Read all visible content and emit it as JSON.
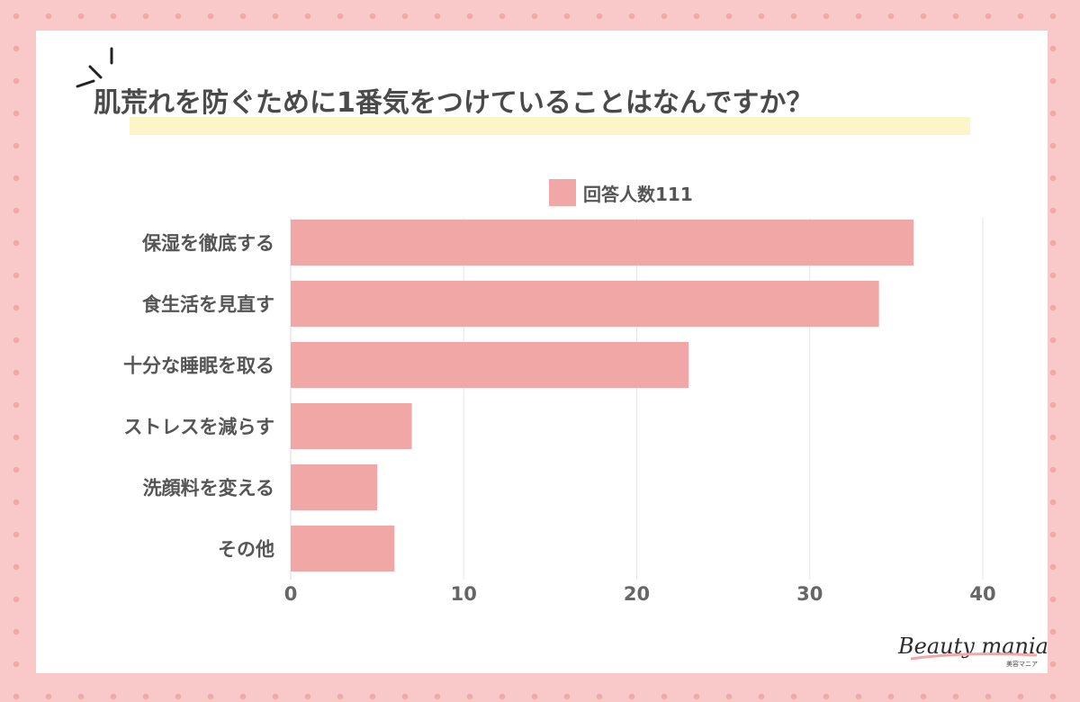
{
  "chart_data": {
    "type": "bar",
    "orientation": "horizontal",
    "title": "肌荒れを防ぐために1番気をつけていることはなんですか？",
    "categories": [
      "保湿を徹底する",
      "食生活を見直す",
      "十分な睡眠を取る",
      "ストレスを減らす",
      "洗顔料を変える",
      "その他"
    ],
    "series": [
      {
        "name": "回答人数111",
        "values": [
          36,
          34,
          23,
          7,
          5,
          6
        ]
      }
    ],
    "xlim": [
      0,
      40
    ],
    "xticks": [
      0,
      10,
      20,
      30,
      40
    ],
    "grid": true,
    "legend_position": "top",
    "bar_color": "#f2a7a7"
  },
  "colors": {
    "title_highlight": "#fbf5c8",
    "grid": "#e6e6e6"
  },
  "logo": {
    "main": "Beauty mania",
    "sub": "美容マニア"
  }
}
